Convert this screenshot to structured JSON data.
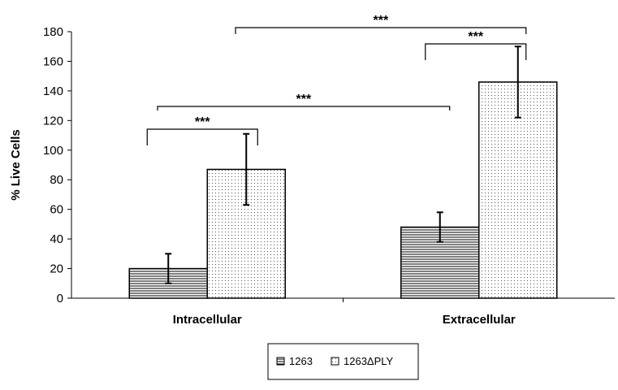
{
  "chart_data": {
    "type": "bar",
    "title": "",
    "xlabel": "",
    "ylabel": "% Live Cells",
    "ylim": [
      0,
      180
    ],
    "yticks": [
      0,
      20,
      40,
      60,
      80,
      100,
      120,
      140,
      160,
      180
    ],
    "categories": [
      "Intracellular",
      "Extracellular"
    ],
    "grid": false,
    "legend_position": "bottom",
    "series": [
      {
        "name": "1263",
        "values": [
          20,
          48
        ],
        "errors": [
          10,
          10
        ],
        "pattern": "horizontal-lines"
      },
      {
        "name": "1263ΔPLY",
        "values": [
          87,
          146
        ],
        "errors": [
          24,
          24
        ],
        "pattern": "dots"
      }
    ],
    "significance": [
      {
        "label": "***",
        "from": "1263 Intracellular",
        "to": "1263ΔPLY Intracellular",
        "y": 128
      },
      {
        "label": "***",
        "from": "1263 Intracellular (mid)",
        "to": "1263 Extracellular (mid)",
        "y": 130
      },
      {
        "label": "***",
        "from": "1263 Extracellular",
        "to": "1263ΔPLY Extracellular",
        "y": 172
      },
      {
        "label": "***",
        "from": "1263ΔPLY Intracellular (mid)",
        "to": "1263ΔPLY Extracellular",
        "y": 182
      }
    ]
  }
}
